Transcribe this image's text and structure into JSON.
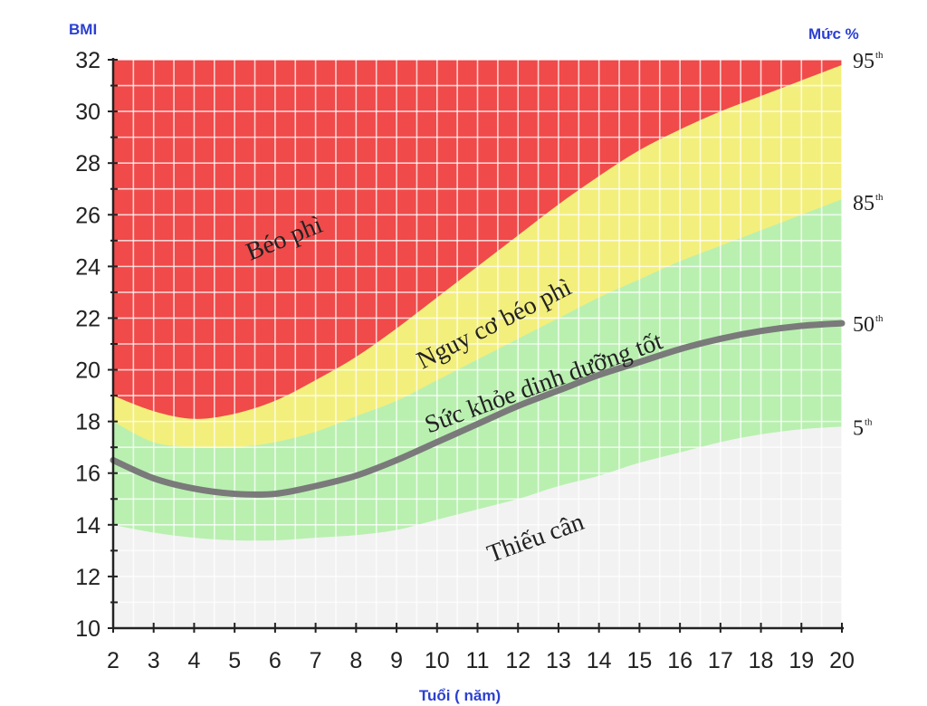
{
  "chart_data": {
    "type": "area",
    "ylabel": "BMI",
    "xlabel": "Tuổi ( năm)",
    "right_axis_label": "Mức %",
    "xlim": [
      2,
      20
    ],
    "ylim": [
      10,
      32
    ],
    "x_ticks": [
      "2",
      "3",
      "4",
      "5",
      "6",
      "7",
      "8",
      "9",
      "10",
      "11",
      "12",
      "13",
      "14",
      "15",
      "16",
      "17",
      "18",
      "19",
      "20"
    ],
    "y_ticks": [
      "10",
      "12",
      "14",
      "16",
      "18",
      "20",
      "22",
      "24",
      "26",
      "28",
      "30",
      "32"
    ],
    "x": [
      2,
      3,
      4,
      5,
      6,
      7,
      8,
      9,
      10,
      11,
      12,
      13,
      14,
      15,
      16,
      17,
      18,
      19,
      20
    ],
    "series": [
      {
        "name": "5th",
        "color": "#f2f2f2",
        "values": [
          14.0,
          13.7,
          13.5,
          13.4,
          13.4,
          13.5,
          13.6,
          13.8,
          14.2,
          14.6,
          15.0,
          15.5,
          15.9,
          16.4,
          16.8,
          17.2,
          17.5,
          17.7,
          17.8
        ]
      },
      {
        "name": "50th",
        "color": "#777777",
        "values": [
          16.5,
          15.8,
          15.4,
          15.2,
          15.2,
          15.5,
          15.9,
          16.5,
          17.2,
          17.9,
          18.6,
          19.2,
          19.8,
          20.3,
          20.8,
          21.2,
          21.5,
          21.7,
          21.8
        ]
      },
      {
        "name": "85th",
        "color": "#b9f0b0",
        "values": [
          18.0,
          17.2,
          17.0,
          17.0,
          17.2,
          17.6,
          18.2,
          18.8,
          19.6,
          20.4,
          21.2,
          22.0,
          22.8,
          23.5,
          24.2,
          24.8,
          25.4,
          26.0,
          26.6
        ]
      },
      {
        "name": "95th",
        "color": "#f3ef7c",
        "values": [
          19.0,
          18.4,
          18.1,
          18.3,
          18.8,
          19.6,
          20.5,
          21.6,
          22.8,
          24.0,
          25.2,
          26.4,
          27.5,
          28.5,
          29.3,
          30.0,
          30.6,
          31.2,
          31.8
        ]
      }
    ],
    "bands": [
      {
        "name": "Béo phì",
        "color": "#f04a4a"
      },
      {
        "name": "Nguy cơ béo phì",
        "color": "#f3ef7c"
      },
      {
        "name": "Sức khỏe dinh dưỡng tốt",
        "color": "#b9f0b0"
      },
      {
        "name": "Thiếu cân",
        "color": "#f2f2f2"
      }
    ],
    "right_labels": [
      {
        "text": "95",
        "sup": "th",
        "y": 32
      },
      {
        "text": "85",
        "sup": "th",
        "y": 26.5
      },
      {
        "text": "50",
        "sup": "th",
        "y": 21.8
      },
      {
        "text": "5",
        "sup": "th",
        "y": 17.8
      }
    ],
    "annotations": [
      {
        "text": "Béo phì",
        "x": 6.3,
        "y": 24.8,
        "angle": -22
      },
      {
        "text": "Nguy cơ béo phì",
        "x": 11.5,
        "y": 21.5,
        "angle": -27
      },
      {
        "text": "Sức khỏe dinh dưỡng tốt",
        "x": 12.7,
        "y": 19.2,
        "angle": -20
      },
      {
        "text": "Thiếu cân",
        "x": 12.5,
        "y": 13.2,
        "angle": -20
      }
    ],
    "grid": true
  }
}
